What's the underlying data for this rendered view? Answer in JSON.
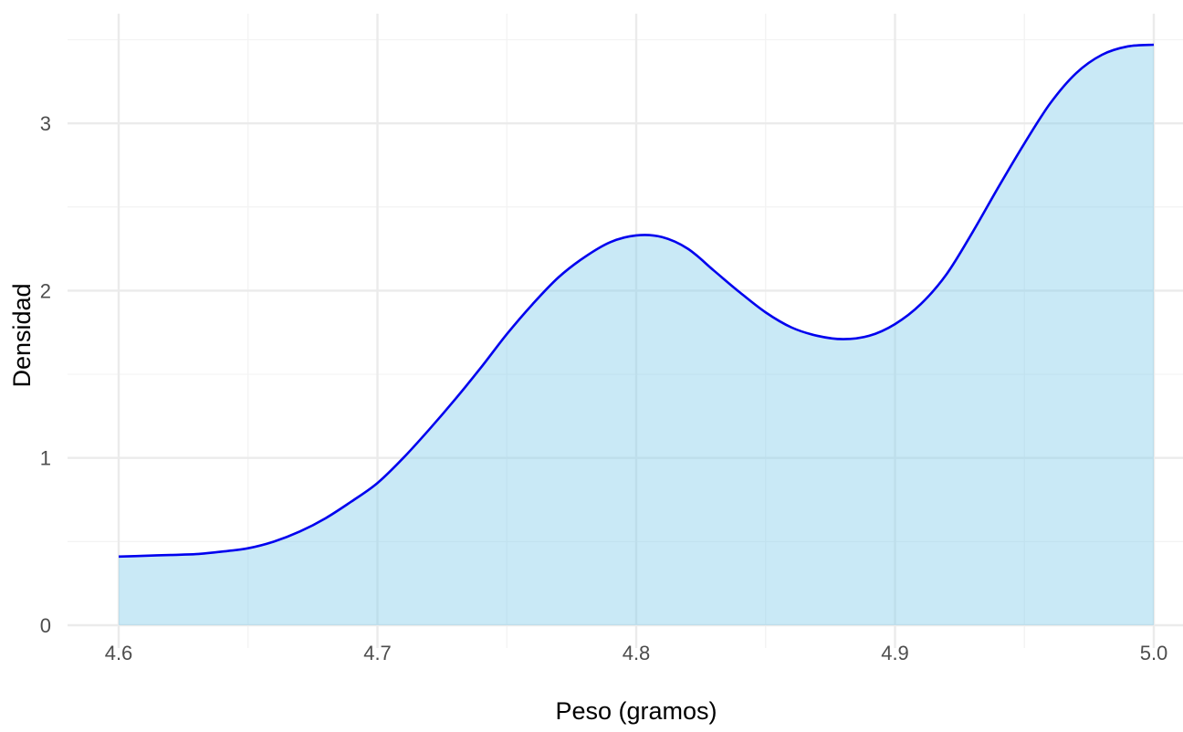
{
  "chart_data": {
    "type": "area",
    "title": "",
    "xlabel": "Peso (gramos)",
    "ylabel": "Densidad",
    "xlim": [
      4.6,
      5.0
    ],
    "ylim": [
      0,
      3.47
    ],
    "x_ticks": [
      4.6,
      4.7,
      4.8,
      4.9,
      5.0
    ],
    "x_tick_labels": [
      "4.6",
      "4.7",
      "4.8",
      "4.9",
      "5.0"
    ],
    "y_ticks": [
      0,
      1,
      2,
      3
    ],
    "y_tick_labels": [
      "0",
      "1",
      "2",
      "3"
    ],
    "grid": true,
    "legend": "none",
    "series": [
      {
        "x": [
          4.6,
          4.61,
          4.62,
          4.63,
          4.64,
          4.65,
          4.66,
          4.67,
          4.68,
          4.69,
          4.7,
          4.71,
          4.72,
          4.73,
          4.74,
          4.75,
          4.76,
          4.77,
          4.78,
          4.79,
          4.8,
          4.81,
          4.82,
          4.83,
          4.84,
          4.85,
          4.86,
          4.87,
          4.88,
          4.89,
          4.9,
          4.91,
          4.92,
          4.93,
          4.94,
          4.95,
          4.96,
          4.97,
          4.98,
          4.99,
          5.0
        ],
        "y": [
          0.41,
          0.415,
          0.42,
          0.425,
          0.44,
          0.46,
          0.5,
          0.56,
          0.64,
          0.74,
          0.85,
          1.0,
          1.17,
          1.35,
          1.54,
          1.74,
          1.92,
          2.08,
          2.2,
          2.29,
          2.33,
          2.32,
          2.25,
          2.12,
          1.99,
          1.87,
          1.78,
          1.73,
          1.71,
          1.73,
          1.8,
          1.92,
          2.1,
          2.35,
          2.62,
          2.88,
          3.12,
          3.3,
          3.41,
          3.46,
          3.47
        ]
      }
    ],
    "colors": {
      "line": "#0000ee",
      "fill": "#87ceeb",
      "fill_opacity": 0.45,
      "grid_major": "#ebebeb",
      "grid_minor": "#f3f3f3",
      "tick_text": "#4d4d4d",
      "axis_title": "#000000"
    }
  }
}
